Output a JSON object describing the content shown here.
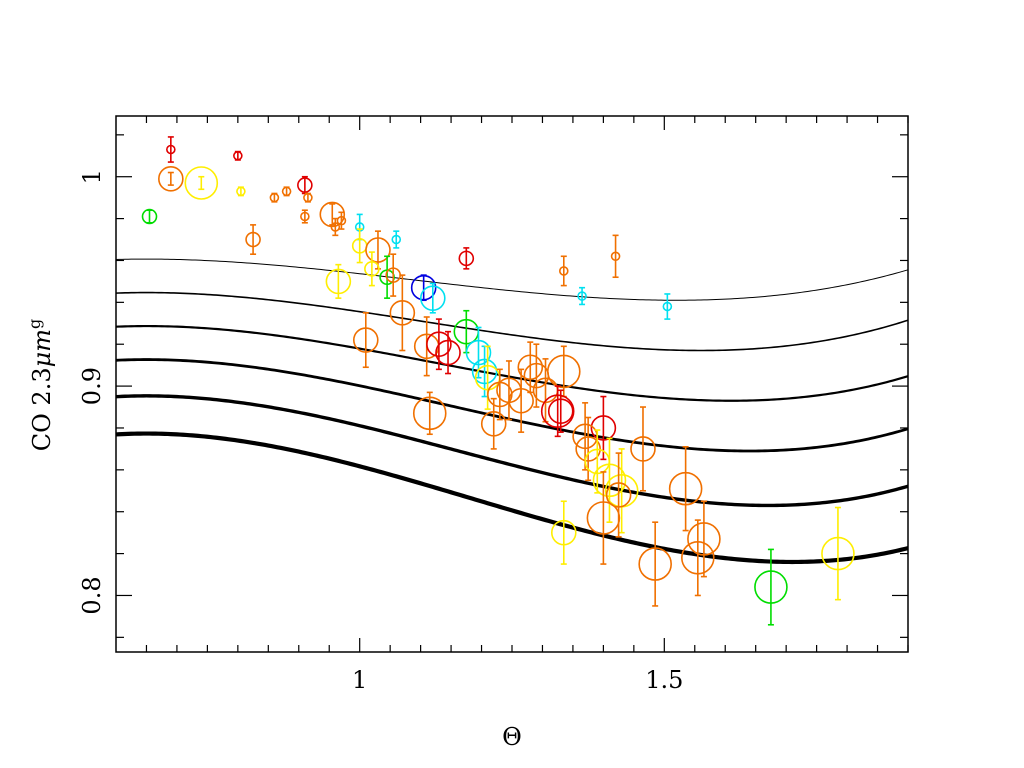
{
  "chart_data": {
    "type": "scatter",
    "title": "",
    "xlabel": "Θ",
    "ylabel": "CO 2.3μm^g",
    "ylabel_parts": {
      "main": "CO 2.3",
      "mu": "μ",
      "unit": "m",
      "sup": "g"
    },
    "xlim": [
      0.6,
      1.9
    ],
    "ylim": [
      0.773,
      1.029
    ],
    "xticks": [
      1,
      1.5
    ],
    "xtick_labels": [
      "1",
      "1.5"
    ],
    "yticks": [
      0.8,
      0.9,
      1
    ],
    "ytick_labels": [
      "0.8",
      "0.9",
      "1"
    ],
    "grid": false,
    "legend": "none",
    "colors": {
      "red": "#e00000",
      "orange": "#f07000",
      "yellow": "#ffee00",
      "green": "#00dd00",
      "cyan": "#00e0f0",
      "blue": "#0000e0",
      "curve": "#000000"
    },
    "model_curves": [
      {
        "ymin": 0.941,
        "xmin": 1.52,
        "width": 1.0
      },
      {
        "ymin": 0.917,
        "xmin": 1.56,
        "width": 1.6
      },
      {
        "ymin": 0.893,
        "xmin": 1.61,
        "width": 2.2
      },
      {
        "ymin": 0.869,
        "xmin": 1.64,
        "width": 2.8
      },
      {
        "ymin": 0.843,
        "xmin": 1.67,
        "width": 3.4
      },
      {
        "ymin": 0.816,
        "xmin": 1.71,
        "width": 4.2
      }
    ],
    "points": [
      {
        "x": 0.69,
        "y": 1.013,
        "err": 0.006,
        "size": "xs",
        "color": "red"
      },
      {
        "x": 0.8,
        "y": 1.01,
        "err": 0.002,
        "size": "xs",
        "color": "red"
      },
      {
        "x": 0.655,
        "y": 0.981,
        "err": 0.003,
        "size": "s",
        "color": "green"
      },
      {
        "x": 0.69,
        "y": 0.999,
        "err": 0.003,
        "size": "m",
        "color": "orange"
      },
      {
        "x": 0.74,
        "y": 0.997,
        "err": 0.003,
        "size": "l",
        "color": "yellow"
      },
      {
        "x": 0.805,
        "y": 0.993,
        "err": 0.002,
        "size": "xs",
        "color": "yellow"
      },
      {
        "x": 0.86,
        "y": 0.99,
        "err": 0.002,
        "size": "xs",
        "color": "orange"
      },
      {
        "x": 0.88,
        "y": 0.993,
        "err": 0.002,
        "size": "xs",
        "color": "orange"
      },
      {
        "x": 0.91,
        "y": 0.996,
        "err": 0.004,
        "size": "s",
        "color": "red"
      },
      {
        "x": 0.915,
        "y": 0.99,
        "err": 0.002,
        "size": "xs",
        "color": "orange"
      },
      {
        "x": 0.91,
        "y": 0.981,
        "err": 0.003,
        "size": "xs",
        "color": "orange"
      },
      {
        "x": 0.825,
        "y": 0.97,
        "err": 0.007,
        "size": "s",
        "color": "orange"
      },
      {
        "x": 0.955,
        "y": 0.982,
        "err": 0.005,
        "size": "m",
        "color": "orange"
      },
      {
        "x": 0.96,
        "y": 0.976,
        "err": 0.004,
        "size": "xs",
        "color": "orange"
      },
      {
        "x": 0.97,
        "y": 0.979,
        "err": 0.004,
        "size": "xs",
        "color": "orange"
      },
      {
        "x": 1.0,
        "y": 0.976,
        "err": 0.006,
        "size": "xs",
        "color": "cyan"
      },
      {
        "x": 1.06,
        "y": 0.97,
        "err": 0.004,
        "size": "xs",
        "color": "cyan"
      },
      {
        "x": 1.0,
        "y": 0.967,
        "err": 0.008,
        "size": "s",
        "color": "yellow"
      },
      {
        "x": 1.03,
        "y": 0.965,
        "err": 0.009,
        "size": "m",
        "color": "orange"
      },
      {
        "x": 1.02,
        "y": 0.956,
        "err": 0.008,
        "size": "s",
        "color": "yellow"
      },
      {
        "x": 1.045,
        "y": 0.952,
        "err": 0.01,
        "size": "s",
        "color": "green"
      },
      {
        "x": 1.055,
        "y": 0.953,
        "err": 0.01,
        "size": "s",
        "color": "orange"
      },
      {
        "x": 0.965,
        "y": 0.95,
        "err": 0.008,
        "size": "m",
        "color": "yellow"
      },
      {
        "x": 1.105,
        "y": 0.947,
        "err": 0.006,
        "size": "m",
        "color": "blue"
      },
      {
        "x": 1.12,
        "y": 0.942,
        "err": 0.007,
        "size": "m",
        "color": "cyan"
      },
      {
        "x": 1.07,
        "y": 0.935,
        "err": 0.018,
        "size": "m",
        "color": "orange"
      },
      {
        "x": 1.175,
        "y": 0.961,
        "err": 0.005,
        "size": "s",
        "color": "red"
      },
      {
        "x": 1.335,
        "y": 0.955,
        "err": 0.007,
        "size": "xs",
        "color": "orange"
      },
      {
        "x": 1.42,
        "y": 0.962,
        "err": 0.01,
        "size": "xs",
        "color": "orange"
      },
      {
        "x": 1.365,
        "y": 0.943,
        "err": 0.004,
        "size": "xs",
        "color": "cyan"
      },
      {
        "x": 1.505,
        "y": 0.938,
        "err": 0.006,
        "size": "xs",
        "color": "cyan"
      },
      {
        "x": 1.01,
        "y": 0.922,
        "err": 0.013,
        "size": "m",
        "color": "orange"
      },
      {
        "x": 1.11,
        "y": 0.919,
        "err": 0.014,
        "size": "m",
        "color": "orange"
      },
      {
        "x": 1.13,
        "y": 0.92,
        "err": 0.012,
        "size": "m",
        "color": "red"
      },
      {
        "x": 1.145,
        "y": 0.916,
        "err": 0.01,
        "size": "m",
        "color": "red"
      },
      {
        "x": 1.175,
        "y": 0.926,
        "err": 0.01,
        "size": "m",
        "color": "green"
      },
      {
        "x": 1.195,
        "y": 0.916,
        "err": 0.012,
        "size": "m",
        "color": "cyan"
      },
      {
        "x": 1.205,
        "y": 0.907,
        "err": 0.012,
        "size": "m",
        "color": "cyan"
      },
      {
        "x": 1.115,
        "y": 0.887,
        "err": 0.01,
        "size": "l",
        "color": "orange"
      },
      {
        "x": 1.21,
        "y": 0.904,
        "err": 0.015,
        "size": "m",
        "color": "yellow"
      },
      {
        "x": 1.23,
        "y": 0.896,
        "err": 0.012,
        "size": "m",
        "color": "orange"
      },
      {
        "x": 1.245,
        "y": 0.898,
        "err": 0.014,
        "size": "m",
        "color": "orange"
      },
      {
        "x": 1.265,
        "y": 0.893,
        "err": 0.015,
        "size": "m",
        "color": "orange"
      },
      {
        "x": 1.28,
        "y": 0.909,
        "err": 0.012,
        "size": "m",
        "color": "orange"
      },
      {
        "x": 1.29,
        "y": 0.905,
        "err": 0.015,
        "size": "m",
        "color": "orange"
      },
      {
        "x": 1.305,
        "y": 0.898,
        "err": 0.015,
        "size": "m",
        "color": "orange"
      },
      {
        "x": 1.335,
        "y": 0.907,
        "err": 0.012,
        "size": "l",
        "color": "orange"
      },
      {
        "x": 1.22,
        "y": 0.882,
        "err": 0.012,
        "size": "m",
        "color": "orange"
      },
      {
        "x": 1.325,
        "y": 0.888,
        "err": 0.012,
        "size": "l",
        "color": "red"
      },
      {
        "x": 1.33,
        "y": 0.888,
        "err": 0.01,
        "size": "m",
        "color": "red"
      },
      {
        "x": 1.4,
        "y": 0.88,
        "err": 0.015,
        "size": "m",
        "color": "red"
      },
      {
        "x": 1.37,
        "y": 0.876,
        "err": 0.016,
        "size": "m",
        "color": "orange"
      },
      {
        "x": 1.375,
        "y": 0.87,
        "err": 0.015,
        "size": "m",
        "color": "orange"
      },
      {
        "x": 1.39,
        "y": 0.864,
        "err": 0.015,
        "size": "m",
        "color": "yellow"
      },
      {
        "x": 1.465,
        "y": 0.87,
        "err": 0.02,
        "size": "m",
        "color": "orange"
      },
      {
        "x": 1.41,
        "y": 0.855,
        "err": 0.02,
        "size": "l",
        "color": "yellow"
      },
      {
        "x": 1.43,
        "y": 0.85,
        "err": 0.02,
        "size": "l",
        "color": "yellow"
      },
      {
        "x": 1.425,
        "y": 0.848,
        "err": 0.02,
        "size": "m",
        "color": "orange"
      },
      {
        "x": 1.4,
        "y": 0.837,
        "err": 0.022,
        "size": "l",
        "color": "orange"
      },
      {
        "x": 1.535,
        "y": 0.851,
        "err": 0.02,
        "size": "l",
        "color": "orange"
      },
      {
        "x": 1.335,
        "y": 0.83,
        "err": 0.015,
        "size": "m",
        "color": "yellow"
      },
      {
        "x": 1.565,
        "y": 0.827,
        "err": 0.018,
        "size": "l",
        "color": "orange"
      },
      {
        "x": 1.555,
        "y": 0.818,
        "err": 0.018,
        "size": "l",
        "color": "orange"
      },
      {
        "x": 1.485,
        "y": 0.815,
        "err": 0.02,
        "size": "l",
        "color": "orange"
      },
      {
        "x": 1.675,
        "y": 0.804,
        "err": 0.018,
        "size": "l",
        "color": "green"
      },
      {
        "x": 1.785,
        "y": 0.82,
        "err": 0.022,
        "size": "l",
        "color": "yellow"
      }
    ]
  }
}
